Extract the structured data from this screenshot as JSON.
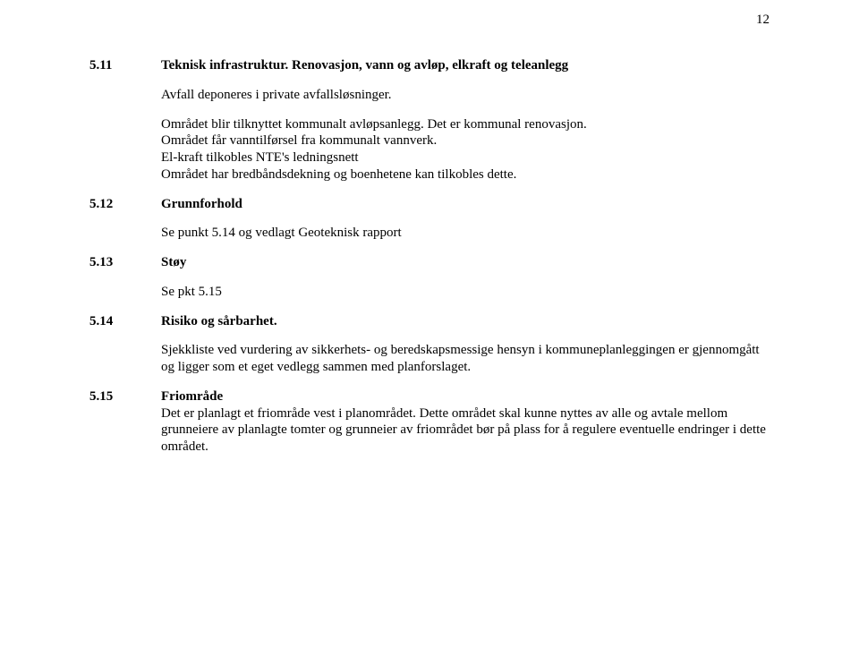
{
  "pageNumber": "12",
  "sections": {
    "s1": {
      "num": "5.11",
      "title": "Teknisk infrastruktur. Renovasjon, vann og avløp, elkraft og teleanlegg",
      "p1": "Avfall deponeres i private avfallsløsninger.",
      "p2": "Området blir tilknyttet kommunalt avløpsanlegg. Det er kommunal renovasjon.",
      "p3": "Området får vanntilførsel fra kommunalt vannverk.",
      "p4": "El-kraft tilkobles NTE's ledningsnett",
      "p5": "Området har bredbåndsdekning og boenhetene kan tilkobles dette."
    },
    "s2": {
      "num": "5.12",
      "title": "Grunnforhold",
      "p1": "Se punkt 5.14 og vedlagt Geoteknisk rapport"
    },
    "s3": {
      "num": "5.13",
      "title": "Støy",
      "p1": "Se pkt 5.15"
    },
    "s4": {
      "num": "5.14",
      "title": "Risiko og sårbarhet.",
      "p1": "Sjekkliste ved vurdering av sikkerhets- og beredskapsmessige hensyn i kommuneplanleggingen er gjennomgått og ligger som et eget vedlegg sammen med planforslaget."
    },
    "s5": {
      "num": "5.15",
      "title": "Friområde",
      "p1": "Det er planlagt et friområde vest i planområdet. Dette området skal kunne nyttes av alle og avtale mellom grunneiere av planlagte tomter og grunneier av friområdet bør på plass for å regulere eventuelle endringer i dette området."
    }
  }
}
